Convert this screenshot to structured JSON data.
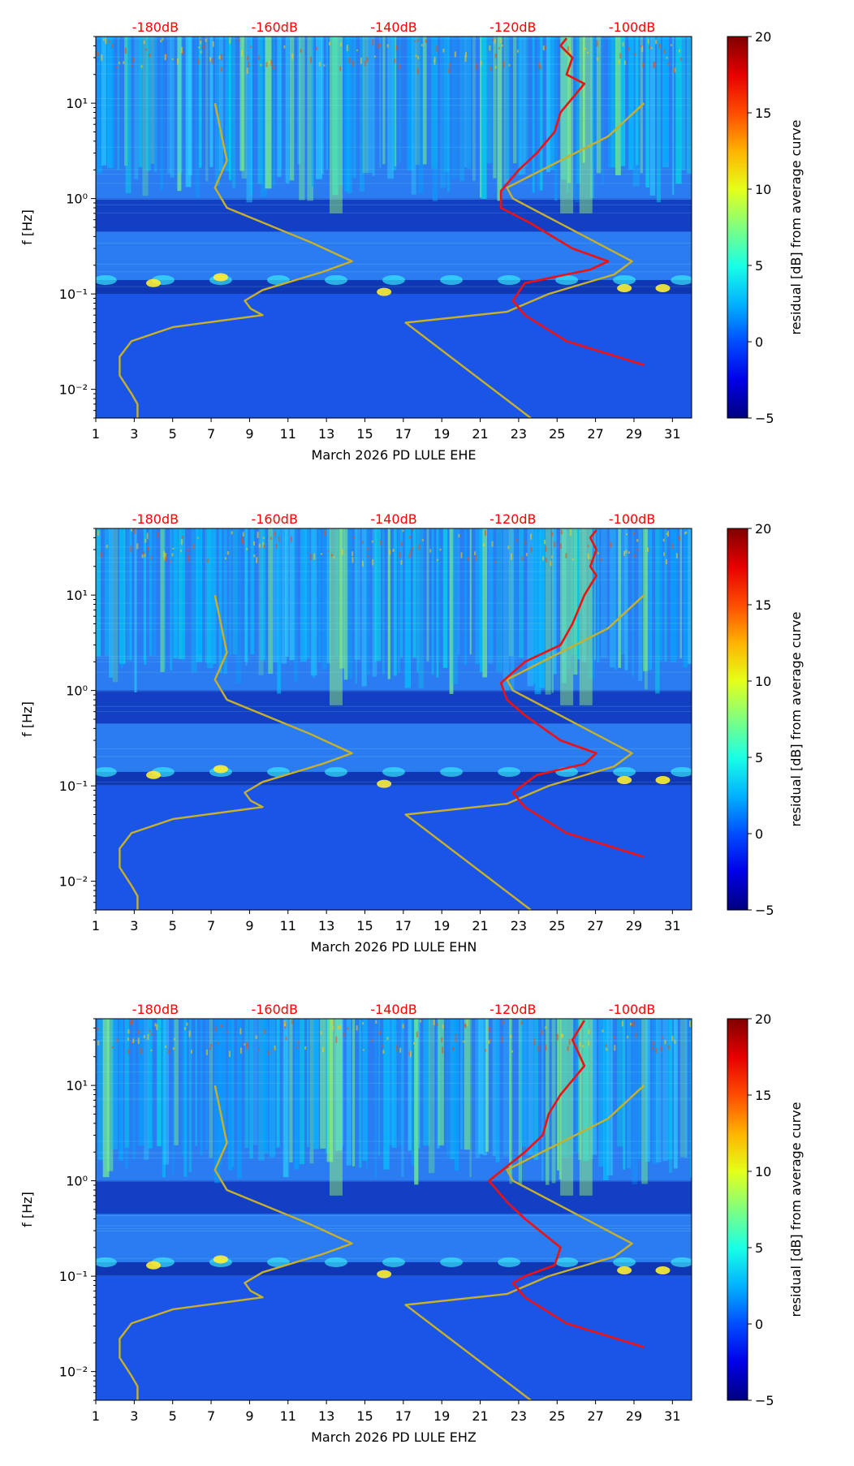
{
  "chart_data": [
    {
      "type": "heatmap",
      "subtype": "spectrogram",
      "xlabel": "March 2026 PD LULE  EHE",
      "ylabel": "f [Hz]",
      "x_ticks": [
        1,
        3,
        5,
        7,
        9,
        11,
        13,
        15,
        17,
        19,
        21,
        23,
        25,
        27,
        29,
        31
      ],
      "x_tick_labels": [
        "1",
        "3",
        "5",
        "7",
        "9",
        "11",
        "13",
        "15",
        "17",
        "19",
        "21",
        "23",
        "25",
        "27",
        "29",
        "31"
      ],
      "y_scale": "log",
      "ylim": [
        0.005,
        50
      ],
      "y_ticks": [
        0.01,
        0.1,
        1,
        10
      ],
      "y_tick_labels": [
        "10⁻²",
        "10⁻¹",
        "10⁰",
        "10¹"
      ],
      "xlim": [
        1,
        32
      ],
      "top_axis_ticks": [
        -180,
        -160,
        -140,
        -120,
        -100
      ],
      "top_axis_labels": [
        "-180dB",
        "-160dB",
        "-140dB",
        "-120dB",
        "-100dB"
      ],
      "top_axis_range": [
        -190,
        -90
      ],
      "colorbar": {
        "label": "residual [dB] from average curve",
        "range": [
          -5,
          20
        ],
        "ticks": [
          -5,
          0,
          5,
          10,
          15,
          20
        ],
        "tick_labels": [
          "−5",
          "0",
          "5",
          "10",
          "15",
          "20"
        ]
      },
      "series": [
        {
          "name": "noise-model-lower",
          "color": "#c8b02a",
          "points": [
            [
              -183,
              0.005
            ],
            [
              -183,
              0.007
            ],
            [
              -184,
              0.009
            ],
            [
              -186,
              0.014
            ],
            [
              -186,
              0.022
            ],
            [
              -184,
              0.032
            ],
            [
              -177,
              0.045
            ],
            [
              -162,
              0.06
            ],
            [
              -164,
              0.07
            ],
            [
              -165,
              0.085
            ],
            [
              -162,
              0.11
            ],
            [
              -152,
              0.17
            ],
            [
              -147,
              0.22
            ],
            [
              -154,
              0.35
            ],
            [
              -168,
              0.8
            ],
            [
              -170,
              1.3
            ],
            [
              -168,
              2.5
            ],
            [
              -169,
              5
            ],
            [
              -170,
              10
            ]
          ]
        },
        {
          "name": "noise-model-upper",
          "color": "#c8b02a",
          "points": [
            [
              -117,
              0.005
            ],
            [
              -138,
              0.05
            ],
            [
              -121,
              0.065
            ],
            [
              -114,
              0.1
            ],
            [
              -103,
              0.16
            ],
            [
              -100,
              0.22
            ],
            [
              -120,
              1
            ],
            [
              -121,
              1.3
            ],
            [
              -104,
              4.5
            ],
            [
              -98,
              10
            ]
          ]
        },
        {
          "name": "median-psd",
          "color": "#ee1111",
          "points": [
            [
              -98,
              0.018
            ],
            [
              -111,
              0.032
            ],
            [
              -118,
              0.06
            ],
            [
              -120,
              0.085
            ],
            [
              -118,
              0.13
            ],
            [
              -107,
              0.18
            ],
            [
              -104,
              0.22
            ],
            [
              -110,
              0.3
            ],
            [
              -117,
              0.55
            ],
            [
              -122,
              0.8
            ],
            [
              -122,
              1.2
            ],
            [
              -119,
              2
            ],
            [
              -116,
              3
            ],
            [
              -113,
              5
            ],
            [
              -112,
              8
            ],
            [
              -108,
              16
            ],
            [
              -111,
              20
            ],
            [
              -110,
              30
            ],
            [
              -112,
              40
            ],
            [
              -111,
              48
            ]
          ]
        }
      ]
    },
    {
      "type": "heatmap",
      "subtype": "spectrogram",
      "xlabel": "March 2026 PD LULE  EHN",
      "ylabel": "f [Hz]",
      "x_ticks": [
        1,
        3,
        5,
        7,
        9,
        11,
        13,
        15,
        17,
        19,
        21,
        23,
        25,
        27,
        29,
        31
      ],
      "x_tick_labels": [
        "1",
        "3",
        "5",
        "7",
        "9",
        "11",
        "13",
        "15",
        "17",
        "19",
        "21",
        "23",
        "25",
        "27",
        "29",
        "31"
      ],
      "y_scale": "log",
      "ylim": [
        0.005,
        50
      ],
      "y_ticks": [
        0.01,
        0.1,
        1,
        10
      ],
      "y_tick_labels": [
        "10⁻²",
        "10⁻¹",
        "10⁰",
        "10¹"
      ],
      "xlim": [
        1,
        32
      ],
      "top_axis_ticks": [
        -180,
        -160,
        -140,
        -120,
        -100
      ],
      "top_axis_labels": [
        "-180dB",
        "-160dB",
        "-140dB",
        "-120dB",
        "-100dB"
      ],
      "top_axis_range": [
        -190,
        -90
      ],
      "colorbar": {
        "label": "residual [dB] from average curve",
        "range": [
          -5,
          20
        ],
        "ticks": [
          -5,
          0,
          5,
          10,
          15,
          20
        ],
        "tick_labels": [
          "−5",
          "0",
          "5",
          "10",
          "15",
          "20"
        ]
      },
      "series": [
        {
          "name": "noise-model-lower",
          "color": "#c8b02a",
          "points": [
            [
              -183,
              0.005
            ],
            [
              -183,
              0.007
            ],
            [
              -184,
              0.009
            ],
            [
              -186,
              0.014
            ],
            [
              -186,
              0.022
            ],
            [
              -184,
              0.032
            ],
            [
              -177,
              0.045
            ],
            [
              -162,
              0.06
            ],
            [
              -164,
              0.07
            ],
            [
              -165,
              0.085
            ],
            [
              -162,
              0.11
            ],
            [
              -152,
              0.17
            ],
            [
              -147,
              0.22
            ],
            [
              -154,
              0.35
            ],
            [
              -168,
              0.8
            ],
            [
              -170,
              1.3
            ],
            [
              -168,
              2.5
            ],
            [
              -169,
              5
            ],
            [
              -170,
              10
            ]
          ]
        },
        {
          "name": "noise-model-upper",
          "color": "#c8b02a",
          "points": [
            [
              -117,
              0.005
            ],
            [
              -138,
              0.05
            ],
            [
              -121,
              0.065
            ],
            [
              -114,
              0.1
            ],
            [
              -103,
              0.16
            ],
            [
              -100,
              0.22
            ],
            [
              -120,
              1
            ],
            [
              -121,
              1.3
            ],
            [
              -104,
              4.5
            ],
            [
              -98,
              10
            ]
          ]
        },
        {
          "name": "median-psd",
          "color": "#ee1111",
          "points": [
            [
              -98,
              0.018
            ],
            [
              -111,
              0.032
            ],
            [
              -118,
              0.06
            ],
            [
              -120,
              0.085
            ],
            [
              -116,
              0.13
            ],
            [
              -108,
              0.17
            ],
            [
              -106,
              0.22
            ],
            [
              -112,
              0.3
            ],
            [
              -118,
              0.55
            ],
            [
              -121,
              0.8
            ],
            [
              -122,
              1.2
            ],
            [
              -118,
              2
            ],
            [
              -112,
              3
            ],
            [
              -110,
              5
            ],
            [
              -108,
              10
            ],
            [
              -106,
              16
            ],
            [
              -107,
              20
            ],
            [
              -106,
              30
            ],
            [
              -107,
              40
            ],
            [
              -106,
              48
            ]
          ]
        }
      ]
    },
    {
      "type": "heatmap",
      "subtype": "spectrogram",
      "xlabel": "March 2026 PD LULE  EHZ",
      "ylabel": "f [Hz]",
      "x_ticks": [
        1,
        3,
        5,
        7,
        9,
        11,
        13,
        15,
        17,
        19,
        21,
        23,
        25,
        27,
        29,
        31
      ],
      "x_tick_labels": [
        "1",
        "3",
        "5",
        "7",
        "9",
        "11",
        "13",
        "15",
        "17",
        "19",
        "21",
        "23",
        "25",
        "27",
        "29",
        "31"
      ],
      "y_scale": "log",
      "ylim": [
        0.005,
        50
      ],
      "y_ticks": [
        0.01,
        0.1,
        1,
        10
      ],
      "y_tick_labels": [
        "10⁻²",
        "10⁻¹",
        "10⁰",
        "10¹"
      ],
      "xlim": [
        1,
        32
      ],
      "top_axis_ticks": [
        -180,
        -160,
        -140,
        -120,
        -100
      ],
      "top_axis_labels": [
        "-180dB",
        "-160dB",
        "-140dB",
        "-120dB",
        "-100dB"
      ],
      "top_axis_range": [
        -190,
        -90
      ],
      "colorbar": {
        "label": "residual [dB] from average curve",
        "range": [
          -5,
          20
        ],
        "ticks": [
          -5,
          0,
          5,
          10,
          15,
          20
        ],
        "tick_labels": [
          "−5",
          "0",
          "5",
          "10",
          "15",
          "20"
        ]
      },
      "series": [
        {
          "name": "noise-model-lower",
          "color": "#c8b02a",
          "points": [
            [
              -183,
              0.005
            ],
            [
              -183,
              0.007
            ],
            [
              -184,
              0.009
            ],
            [
              -186,
              0.014
            ],
            [
              -186,
              0.022
            ],
            [
              -184,
              0.032
            ],
            [
              -177,
              0.045
            ],
            [
              -162,
              0.06
            ],
            [
              -164,
              0.07
            ],
            [
              -165,
              0.085
            ],
            [
              -162,
              0.11
            ],
            [
              -152,
              0.17
            ],
            [
              -147,
              0.22
            ],
            [
              -154,
              0.35
            ],
            [
              -168,
              0.8
            ],
            [
              -170,
              1.3
            ],
            [
              -168,
              2.5
            ],
            [
              -169,
              5
            ],
            [
              -170,
              10
            ]
          ]
        },
        {
          "name": "noise-model-upper",
          "color": "#c8b02a",
          "points": [
            [
              -117,
              0.005
            ],
            [
              -138,
              0.05
            ],
            [
              -121,
              0.065
            ],
            [
              -114,
              0.1
            ],
            [
              -103,
              0.16
            ],
            [
              -100,
              0.22
            ],
            [
              -120,
              1
            ],
            [
              -121,
              1.3
            ],
            [
              -104,
              4.5
            ],
            [
              -98,
              10
            ]
          ]
        },
        {
          "name": "median-psd",
          "color": "#ee1111",
          "points": [
            [
              -98,
              0.018
            ],
            [
              -111,
              0.032
            ],
            [
              -118,
              0.06
            ],
            [
              -120,
              0.085
            ],
            [
              -118,
              0.1
            ],
            [
              -113,
              0.13
            ],
            [
              -112,
              0.2
            ],
            [
              -118,
              0.4
            ],
            [
              -121,
              0.6
            ],
            [
              -124,
              1
            ],
            [
              -118,
              2
            ],
            [
              -115,
              3
            ],
            [
              -114,
              5
            ],
            [
              -112,
              8
            ],
            [
              -108,
              16
            ],
            [
              -110,
              30
            ],
            [
              -108,
              48
            ]
          ]
        }
      ]
    }
  ],
  "colors": {
    "text": "#000000",
    "top_axis_text": "#ff0000",
    "noise_model": "#c8b02a",
    "psd_line": "#ee1111",
    "colormap": [
      "#00007f",
      "#0000ff",
      "#007fff",
      "#00ffff",
      "#7fff7f",
      "#ffff00",
      "#ff7f00",
      "#ff0000",
      "#7f0000"
    ]
  }
}
